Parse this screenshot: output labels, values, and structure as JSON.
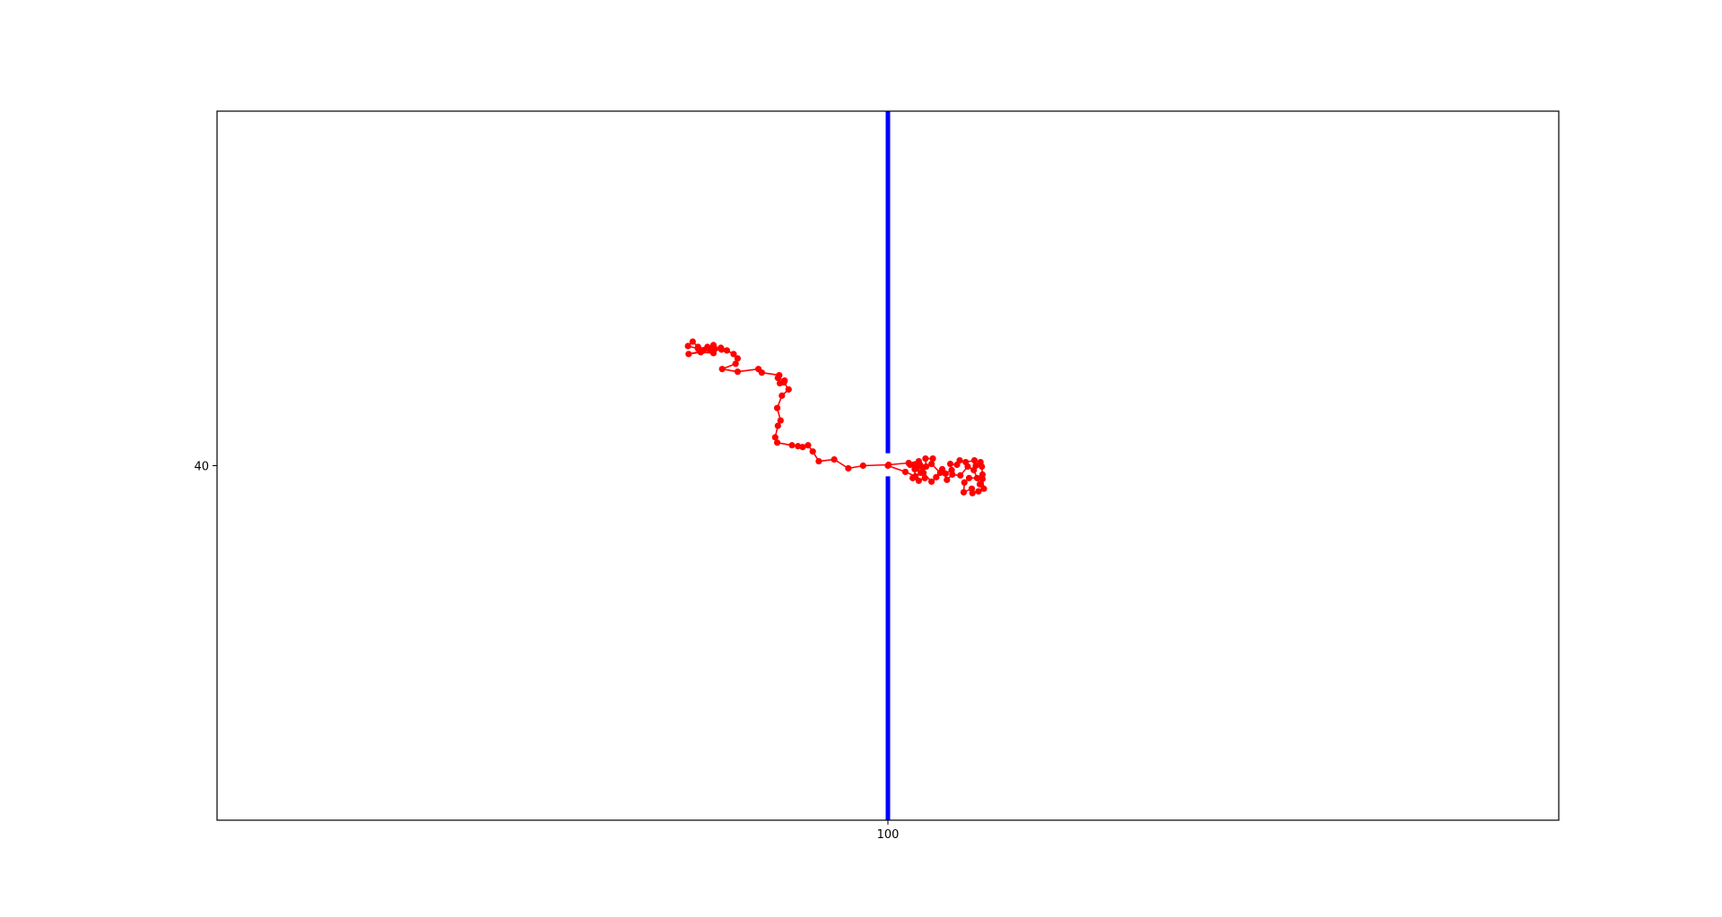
{
  "chart_data": {
    "type": "line",
    "title": "",
    "xlabel": "",
    "ylabel": "",
    "xlim": [
      0,
      200
    ],
    "ylim": [
      0,
      80
    ],
    "x_ticks": [
      100
    ],
    "y_ticks": [
      40
    ],
    "x_tick_labels": [
      "100"
    ],
    "y_tick_labels": [
      "40"
    ],
    "grid": false,
    "barrier": {
      "color": "#0000ff",
      "x": 100,
      "segments": [
        {
          "y_from": 41.4,
          "y_to": 80
        },
        {
          "y_from": 0,
          "y_to": 38.8
        }
      ]
    },
    "series": [
      {
        "color": "#ff0000",
        "marker": "circle",
        "points": [
          [
            100.0,
            40.0
          ],
          [
            102.6,
            39.3
          ],
          [
            104.1,
            38.8
          ],
          [
            105.3,
            39.2
          ],
          [
            106.5,
            38.2
          ],
          [
            107.2,
            38.7
          ],
          [
            108.1,
            39.6
          ],
          [
            108.8,
            38.4
          ],
          [
            109.6,
            39.0
          ],
          [
            110.8,
            38.9
          ],
          [
            111.9,
            39.9
          ],
          [
            112.8,
            39.5
          ],
          [
            113.7,
            37.9
          ],
          [
            114.1,
            38.5
          ],
          [
            114.3,
            37.4
          ],
          [
            113.5,
            37.1
          ],
          [
            112.6,
            36.9
          ],
          [
            112.5,
            37.4
          ],
          [
            111.3,
            37.0
          ],
          [
            111.4,
            38.1
          ],
          [
            112.1,
            38.6
          ],
          [
            113.3,
            38.6
          ],
          [
            114.1,
            39.0
          ],
          [
            114.0,
            39.9
          ],
          [
            113.8,
            40.4
          ],
          [
            113.1,
            40.0
          ],
          [
            112.9,
            40.6
          ],
          [
            111.6,
            40.4
          ],
          [
            110.7,
            40.6
          ],
          [
            110.3,
            40.1
          ],
          [
            109.3,
            40.2
          ],
          [
            109.5,
            39.5
          ],
          [
            108.6,
            39.1
          ],
          [
            107.8,
            39.2
          ],
          [
            106.5,
            40.2
          ],
          [
            106.7,
            40.8
          ],
          [
            105.6,
            40.8
          ],
          [
            105.7,
            39.9
          ],
          [
            104.8,
            40.1
          ],
          [
            104.0,
            40.1
          ],
          [
            103.3,
            40.1
          ],
          [
            104.0,
            39.6
          ],
          [
            104.9,
            39.2
          ],
          [
            105.5,
            38.6
          ],
          [
            104.6,
            38.3
          ],
          [
            103.7,
            38.6
          ],
          [
            104.3,
            39.7
          ],
          [
            105.2,
            39.8
          ],
          [
            104.6,
            40.5
          ],
          [
            103.1,
            40.3
          ],
          [
            100.1,
            40.1
          ],
          [
            96.3,
            40.0
          ],
          [
            94.1,
            39.7
          ],
          [
            92.0,
            40.7
          ],
          [
            89.7,
            40.5
          ],
          [
            88.8,
            41.6
          ],
          [
            88.1,
            42.3
          ],
          [
            87.3,
            42.1
          ],
          [
            86.6,
            42.2
          ],
          [
            85.7,
            42.3
          ],
          [
            83.5,
            42.6
          ],
          [
            83.2,
            43.2
          ],
          [
            83.6,
            44.5
          ],
          [
            84.0,
            45.1
          ],
          [
            83.5,
            46.5
          ],
          [
            84.2,
            47.9
          ],
          [
            85.2,
            48.6
          ],
          [
            84.5,
            49.4
          ],
          [
            83.9,
            49.3
          ],
          [
            84.6,
            49.6
          ],
          [
            83.6,
            49.9
          ],
          [
            83.8,
            50.2
          ],
          [
            81.2,
            50.5
          ],
          [
            80.7,
            50.9
          ],
          [
            77.6,
            50.6
          ],
          [
            75.3,
            50.9
          ],
          [
            77.3,
            51.5
          ],
          [
            77.6,
            52.1
          ],
          [
            77.0,
            52.6
          ],
          [
            76.0,
            53.0
          ],
          [
            75.2,
            53.1
          ],
          [
            74.2,
            53.2
          ],
          [
            73.1,
            53.4
          ],
          [
            71.7,
            53.2
          ],
          [
            70.2,
            53.5
          ],
          [
            70.9,
            54.0
          ],
          [
            71.7,
            53.4
          ],
          [
            72.5,
            53.0
          ],
          [
            74.0,
            53.6
          ],
          [
            73.4,
            53.1
          ],
          [
            70.3,
            52.6
          ],
          [
            72.1,
            52.8
          ],
          [
            74.0,
            52.7
          ],
          [
            75.1,
            53.3
          ]
        ]
      }
    ]
  }
}
